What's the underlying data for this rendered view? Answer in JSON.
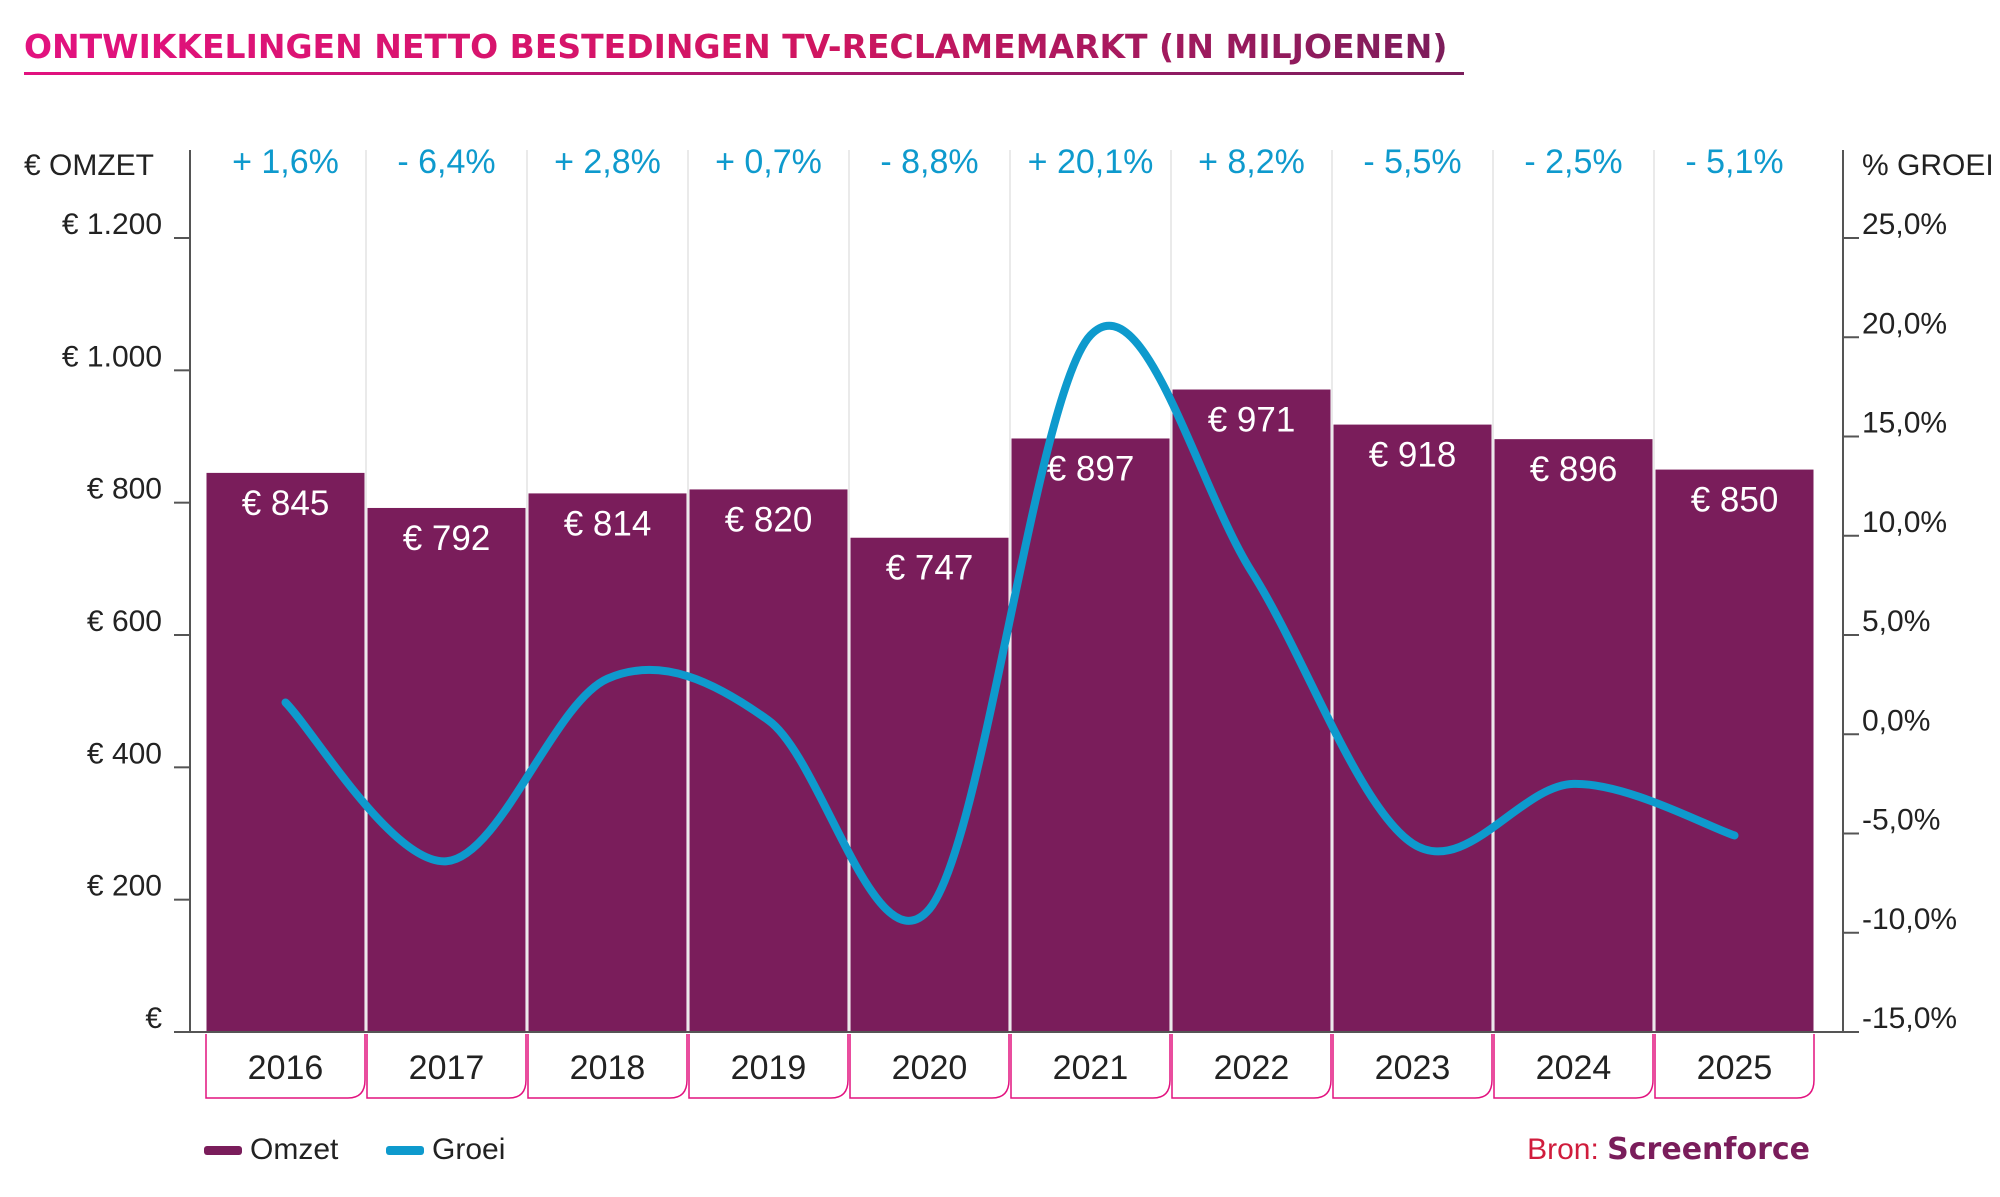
{
  "title": "ONTWIKKELINGEN NETTO BESTEDINGEN TV-RECLAMEMARKT (IN MILJOENEN)",
  "colors": {
    "bar": "#7a1d5b",
    "line": "#0e9acd",
    "accent": "#e2127f",
    "source_brand": "#7a1d5b"
  },
  "chart_data": {
    "type": "bar",
    "categories": [
      "2016",
      "2017",
      "2018",
      "2019",
      "2020",
      "2021",
      "2022",
      "2023",
      "2024",
      "2025"
    ],
    "series": [
      {
        "name": "Omzet",
        "type": "bar",
        "axis": "left",
        "values": [
          845,
          792,
          814,
          820,
          747,
          897,
          971,
          918,
          896,
          850
        ],
        "labels": [
          "€ 845",
          "€ 792",
          "€ 814",
          "€ 820",
          "€ 747",
          "€ 897",
          "€ 971",
          "€ 918",
          "€ 896",
          "€ 850"
        ]
      },
      {
        "name": "Groei",
        "type": "line",
        "axis": "right",
        "values": [
          1.6,
          -6.4,
          2.8,
          0.7,
          -8.8,
          20.1,
          8.2,
          -5.5,
          -2.5,
          -5.1
        ],
        "labels": [
          "+ 1,6%",
          "- 6,4%",
          "+ 2,8%",
          "+ 0,7%",
          "- 8,8%",
          "+ 20,1%",
          "+ 8,2%",
          "- 5,5%",
          "- 2,5%",
          "- 5,1%"
        ]
      }
    ],
    "y_left": {
      "title": "€ OMZET",
      "range": [
        0,
        1200
      ],
      "ticks": [
        0,
        200,
        400,
        600,
        800,
        1000,
        1200
      ],
      "tick_labels": [
        "€",
        "€ 200",
        "€ 400",
        "€ 600",
        "€ 800",
        "€ 1.000",
        "€ 1.200"
      ]
    },
    "y_right": {
      "title": "% GROEI",
      "range": [
        -15,
        25
      ],
      "ticks": [
        -15,
        -10,
        -5,
        0,
        5,
        10,
        15,
        20,
        25
      ],
      "tick_labels": [
        "-15,0%",
        "-10,0%",
        "-5,0%",
        "0,0%",
        "5,0%",
        "10,0%",
        "15,0%",
        "20,0%",
        "25,0%"
      ]
    },
    "legend": [
      {
        "name": "Omzet",
        "kind": "bar"
      },
      {
        "name": "Groei",
        "kind": "line"
      }
    ],
    "legend_position": "bottom-left"
  },
  "source": {
    "prefix": "Bron: ",
    "brand": "Screenforce"
  }
}
